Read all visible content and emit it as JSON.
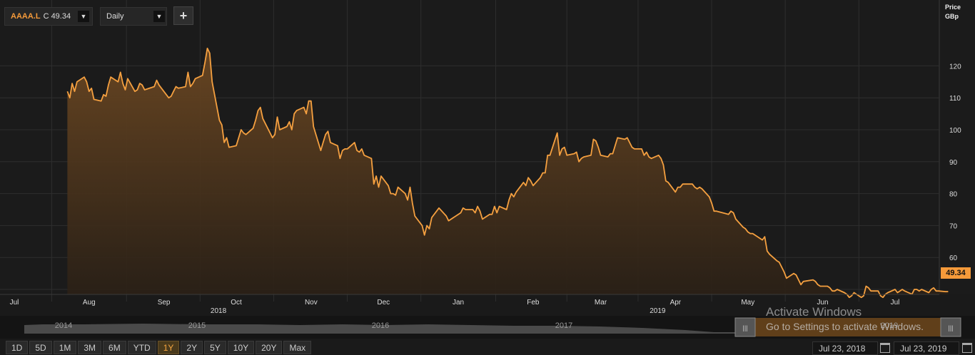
{
  "header": {
    "ticker": "AAAA.L",
    "close_label": "C 49.34",
    "period": "Daily",
    "add_symbol": "+"
  },
  "yaxis": {
    "title_line1": "Price",
    "title_line2": "GBp",
    "last_price": "49.34"
  },
  "colors": {
    "line": "#f5a040",
    "fill_top": "#6b4722",
    "background": "#1a1a1a",
    "grid": "#2e2e2e",
    "price_tag": "#f59a3a"
  },
  "chart_data": {
    "type": "area",
    "ylim": [
      40,
      130
    ],
    "yticks": [
      60,
      70,
      80,
      90,
      100,
      110,
      120
    ],
    "x_range": [
      "2018-07-23",
      "2019-07-23"
    ],
    "x_month_labels": [
      {
        "label": "Jul",
        "date": "2018-07-01"
      },
      {
        "label": "Aug",
        "date": "2018-08-01"
      },
      {
        "label": "Sep",
        "date": "2018-09-01"
      },
      {
        "label": "Oct",
        "date": "2018-10-01"
      },
      {
        "label": "Nov",
        "date": "2018-11-01"
      },
      {
        "label": "Dec",
        "date": "2018-12-01"
      },
      {
        "label": "Jan",
        "date": "2019-01-01"
      },
      {
        "label": "Feb",
        "date": "2019-02-01"
      },
      {
        "label": "Mar",
        "date": "2019-03-01"
      },
      {
        "label": "Apr",
        "date": "2019-04-01"
      },
      {
        "label": "May",
        "date": "2019-05-01"
      },
      {
        "label": "Jun",
        "date": "2019-06-01"
      },
      {
        "label": "Jul",
        "date": "2019-07-01"
      }
    ],
    "x_year_labels": [
      "2018",
      "2019"
    ],
    "series": [
      {
        "name": "AAAA.L",
        "points": [
          [
            "2018-07-23",
            112
          ],
          [
            "2018-07-24",
            110
          ],
          [
            "2018-07-25",
            114.5
          ],
          [
            "2018-07-26",
            112
          ],
          [
            "2018-07-27",
            115
          ],
          [
            "2018-07-30",
            116.5
          ],
          [
            "2018-07-31",
            115
          ],
          [
            "2018-08-01",
            112
          ],
          [
            "2018-08-02",
            113
          ],
          [
            "2018-08-03",
            109.5
          ],
          [
            "2018-08-06",
            109
          ],
          [
            "2018-08-07",
            111
          ],
          [
            "2018-08-08",
            110.5
          ],
          [
            "2018-08-09",
            114
          ],
          [
            "2018-08-10",
            116.5
          ],
          [
            "2018-08-13",
            115
          ],
          [
            "2018-08-14",
            118
          ],
          [
            "2018-08-15",
            114.5
          ],
          [
            "2018-08-16",
            112.5
          ],
          [
            "2018-08-17",
            116
          ],
          [
            "2018-08-20",
            112
          ],
          [
            "2018-08-21",
            112.5
          ],
          [
            "2018-08-22",
            114.5
          ],
          [
            "2018-08-23",
            114
          ],
          [
            "2018-08-24",
            112.5
          ],
          [
            "2018-08-28",
            113.5
          ],
          [
            "2018-08-29",
            115.5
          ],
          [
            "2018-08-30",
            114
          ],
          [
            "2018-08-31",
            113
          ],
          [
            "2018-09-03",
            110
          ],
          [
            "2018-09-04",
            110.5
          ],
          [
            "2018-09-05",
            112
          ],
          [
            "2018-09-06",
            113.5
          ],
          [
            "2018-09-07",
            113
          ],
          [
            "2018-09-10",
            113.5
          ],
          [
            "2018-09-11",
            118
          ],
          [
            "2018-09-12",
            113.5
          ],
          [
            "2018-09-13",
            114.5
          ],
          [
            "2018-09-14",
            116
          ],
          [
            "2018-09-17",
            117
          ],
          [
            "2018-09-18",
            121
          ],
          [
            "2018-09-19",
            125.5
          ],
          [
            "2018-09-20",
            124
          ],
          [
            "2018-09-21",
            115
          ],
          [
            "2018-09-24",
            103
          ],
          [
            "2018-09-25",
            101.5
          ],
          [
            "2018-09-26",
            96
          ],
          [
            "2018-09-27",
            97.5
          ],
          [
            "2018-09-28",
            94.5
          ],
          [
            "2018-10-01",
            95
          ],
          [
            "2018-10-02",
            97.5
          ],
          [
            "2018-10-03",
            100
          ],
          [
            "2018-10-04",
            99
          ],
          [
            "2018-10-05",
            98.5
          ],
          [
            "2018-10-08",
            100.5
          ],
          [
            "2018-10-09",
            103
          ],
          [
            "2018-10-10",
            106
          ],
          [
            "2018-10-11",
            107
          ],
          [
            "2018-10-12",
            103.5
          ],
          [
            "2018-10-15",
            99
          ],
          [
            "2018-10-16",
            97.5
          ],
          [
            "2018-10-17",
            98.5
          ],
          [
            "2018-10-18",
            104
          ],
          [
            "2018-10-19",
            100
          ],
          [
            "2018-10-22",
            101
          ],
          [
            "2018-10-23",
            102.5
          ],
          [
            "2018-10-24",
            100
          ],
          [
            "2018-10-25",
            105
          ],
          [
            "2018-10-26",
            106
          ],
          [
            "2018-10-29",
            107
          ],
          [
            "2018-10-30",
            105
          ],
          [
            "2018-10-31",
            109
          ],
          [
            "2018-11-01",
            109
          ],
          [
            "2018-11-02",
            101
          ],
          [
            "2018-11-05",
            93.5
          ],
          [
            "2018-11-06",
            96
          ],
          [
            "2018-11-07",
            98.5
          ],
          [
            "2018-11-08",
            99.5
          ],
          [
            "2018-11-09",
            96
          ],
          [
            "2018-11-12",
            95
          ],
          [
            "2018-11-13",
            91
          ],
          [
            "2018-11-14",
            93.5
          ],
          [
            "2018-11-15",
            94
          ],
          [
            "2018-11-16",
            94
          ],
          [
            "2018-11-19",
            96
          ],
          [
            "2018-11-20",
            93.5
          ],
          [
            "2018-11-21",
            93
          ],
          [
            "2018-11-22",
            94
          ],
          [
            "2018-11-23",
            92
          ],
          [
            "2018-11-26",
            91
          ],
          [
            "2018-11-27",
            83
          ],
          [
            "2018-11-28",
            85.5
          ],
          [
            "2018-11-29",
            82
          ],
          [
            "2018-11-30",
            85.5
          ],
          [
            "2018-12-03",
            82.5
          ],
          [
            "2018-12-04",
            80
          ],
          [
            "2018-12-05",
            80
          ],
          [
            "2018-12-06",
            79.5
          ],
          [
            "2018-12-07",
            82
          ],
          [
            "2018-12-10",
            80
          ],
          [
            "2018-12-11",
            78
          ],
          [
            "2018-12-12",
            82
          ],
          [
            "2018-12-13",
            77
          ],
          [
            "2018-12-14",
            73
          ],
          [
            "2018-12-17",
            70
          ],
          [
            "2018-12-18",
            67
          ],
          [
            "2018-12-19",
            70
          ],
          [
            "2018-12-20",
            69
          ],
          [
            "2018-12-21",
            72.5
          ],
          [
            "2018-12-24",
            75.5
          ],
          [
            "2018-12-27",
            73
          ],
          [
            "2018-12-28",
            71.5
          ],
          [
            "2019-01-02",
            74
          ],
          [
            "2019-01-03",
            75.5
          ],
          [
            "2019-01-04",
            75
          ],
          [
            "2019-01-07",
            75
          ],
          [
            "2019-01-08",
            74
          ],
          [
            "2019-01-09",
            76
          ],
          [
            "2019-01-10",
            74.5
          ],
          [
            "2019-01-11",
            72
          ],
          [
            "2019-01-14",
            73.5
          ],
          [
            "2019-01-15",
            73.5
          ],
          [
            "2019-01-16",
            76
          ],
          [
            "2019-01-17",
            74
          ],
          [
            "2019-01-18",
            76
          ],
          [
            "2019-01-21",
            75
          ],
          [
            "2019-01-22",
            78
          ],
          [
            "2019-01-23",
            80
          ],
          [
            "2019-01-24",
            79
          ],
          [
            "2019-01-25",
            80.5
          ],
          [
            "2019-01-28",
            83.5
          ],
          [
            "2019-01-29",
            82.5
          ],
          [
            "2019-01-30",
            85
          ],
          [
            "2019-01-31",
            84
          ],
          [
            "2019-02-01",
            82.5
          ],
          [
            "2019-02-04",
            85
          ],
          [
            "2019-02-05",
            86.5
          ],
          [
            "2019-02-06",
            86.5
          ],
          [
            "2019-02-07",
            92
          ],
          [
            "2019-02-08",
            92
          ],
          [
            "2019-02-11",
            99
          ],
          [
            "2019-02-12",
            92
          ],
          [
            "2019-02-13",
            94
          ],
          [
            "2019-02-14",
            94.5
          ],
          [
            "2019-02-15",
            92
          ],
          [
            "2019-02-18",
            92.5
          ],
          [
            "2019-02-19",
            93
          ],
          [
            "2019-02-20",
            90
          ],
          [
            "2019-02-21",
            91
          ],
          [
            "2019-02-22",
            91.5
          ],
          [
            "2019-02-25",
            92
          ],
          [
            "2019-02-26",
            97
          ],
          [
            "2019-02-27",
            96.5
          ],
          [
            "2019-02-28",
            94.5
          ],
          [
            "2019-03-01",
            92
          ],
          [
            "2019-03-04",
            91.5
          ],
          [
            "2019-03-05",
            92.5
          ],
          [
            "2019-03-06",
            92.5
          ],
          [
            "2019-03-07",
            95
          ],
          [
            "2019-03-08",
            97.5
          ],
          [
            "2019-03-11",
            97
          ],
          [
            "2019-03-12",
            97.5
          ],
          [
            "2019-03-13",
            96
          ],
          [
            "2019-03-14",
            94.5
          ],
          [
            "2019-03-15",
            94
          ],
          [
            "2019-03-18",
            94
          ],
          [
            "2019-03-19",
            92
          ],
          [
            "2019-03-20",
            93
          ],
          [
            "2019-03-21",
            91.5
          ],
          [
            "2019-03-22",
            91
          ],
          [
            "2019-03-25",
            92
          ],
          [
            "2019-03-26",
            91
          ],
          [
            "2019-03-27",
            89
          ],
          [
            "2019-03-28",
            84
          ],
          [
            "2019-03-29",
            83.5
          ],
          [
            "2019-04-01",
            80.5
          ],
          [
            "2019-04-02",
            82
          ],
          [
            "2019-04-03",
            82
          ],
          [
            "2019-04-04",
            83
          ],
          [
            "2019-04-05",
            83
          ],
          [
            "2019-04-08",
            83
          ],
          [
            "2019-04-09",
            82
          ],
          [
            "2019-04-10",
            81.5
          ],
          [
            "2019-04-11",
            82
          ],
          [
            "2019-04-12",
            81.5
          ],
          [
            "2019-04-15",
            79
          ],
          [
            "2019-04-16",
            77
          ],
          [
            "2019-04-17",
            74.5
          ],
          [
            "2019-04-18",
            74.5
          ],
          [
            "2019-04-23",
            73.5
          ],
          [
            "2019-04-24",
            74.5
          ],
          [
            "2019-04-25",
            74
          ],
          [
            "2019-04-26",
            72
          ],
          [
            "2019-04-29",
            69.5
          ],
          [
            "2019-04-30",
            69
          ],
          [
            "2019-05-01",
            68
          ],
          [
            "2019-05-02",
            67.5
          ],
          [
            "2019-05-03",
            67.5
          ],
          [
            "2019-05-07",
            65.5
          ],
          [
            "2019-05-08",
            66.5
          ],
          [
            "2019-05-09",
            62
          ],
          [
            "2019-05-10",
            61
          ],
          [
            "2019-05-13",
            59
          ],
          [
            "2019-05-14",
            58.5
          ],
          [
            "2019-05-15",
            57
          ],
          [
            "2019-05-16",
            55.5
          ],
          [
            "2019-05-17",
            53.5
          ],
          [
            "2019-05-20",
            55
          ],
          [
            "2019-05-21",
            54.5
          ],
          [
            "2019-05-22",
            53
          ],
          [
            "2019-05-23",
            51.5
          ],
          [
            "2019-05-24",
            52.5
          ],
          [
            "2019-05-28",
            53
          ],
          [
            "2019-05-29",
            52.5
          ],
          [
            "2019-05-30",
            51.5
          ],
          [
            "2019-05-31",
            51
          ],
          [
            "2019-06-03",
            51
          ],
          [
            "2019-06-04",
            50.5
          ],
          [
            "2019-06-05",
            49.5
          ],
          [
            "2019-06-06",
            49.5
          ],
          [
            "2019-06-07",
            50
          ],
          [
            "2019-06-10",
            49
          ],
          [
            "2019-06-11",
            48.5
          ],
          [
            "2019-06-12",
            47.5
          ],
          [
            "2019-06-13",
            48
          ],
          [
            "2019-06-14",
            49
          ],
          [
            "2019-06-17",
            47.5
          ],
          [
            "2019-06-18",
            48
          ],
          [
            "2019-06-19",
            51
          ],
          [
            "2019-06-20",
            50.5
          ],
          [
            "2019-06-21",
            49.5
          ],
          [
            "2019-06-24",
            49.5
          ],
          [
            "2019-06-25",
            48
          ],
          [
            "2019-06-26",
            47.5
          ],
          [
            "2019-06-27",
            48.5
          ],
          [
            "2019-06-28",
            49
          ],
          [
            "2019-07-01",
            50
          ],
          [
            "2019-07-02",
            49
          ],
          [
            "2019-07-03",
            49.5
          ],
          [
            "2019-07-04",
            50
          ],
          [
            "2019-07-05",
            49.5
          ],
          [
            "2019-07-08",
            48.5
          ],
          [
            "2019-07-09",
            50
          ],
          [
            "2019-07-10",
            50
          ],
          [
            "2019-07-11",
            49.5
          ],
          [
            "2019-07-12",
            50
          ],
          [
            "2019-07-15",
            49
          ],
          [
            "2019-07-16",
            50
          ],
          [
            "2019-07-17",
            50.5
          ],
          [
            "2019-07-18",
            49.5
          ],
          [
            "2019-07-19",
            49.5
          ],
          [
            "2019-07-22",
            49.3
          ],
          [
            "2019-07-23",
            49.34
          ]
        ]
      }
    ]
  },
  "navigator": {
    "year_labels": [
      "2014",
      "2015",
      "2016",
      "2017",
      "2019"
    ],
    "left_handle": "|||",
    "right_handle": "|||"
  },
  "range_buttons": [
    "1D",
    "5D",
    "1M",
    "3M",
    "6M",
    "YTD",
    "1Y",
    "2Y",
    "5Y",
    "10Y",
    "20Y",
    "Max"
  ],
  "range_active": "1Y",
  "date_range": {
    "from": "Jul 23, 2018",
    "to": "Jul 23, 2019"
  },
  "watermark": {
    "line1": "Activate Windows",
    "line2": "Go to Settings to activate Windows."
  }
}
